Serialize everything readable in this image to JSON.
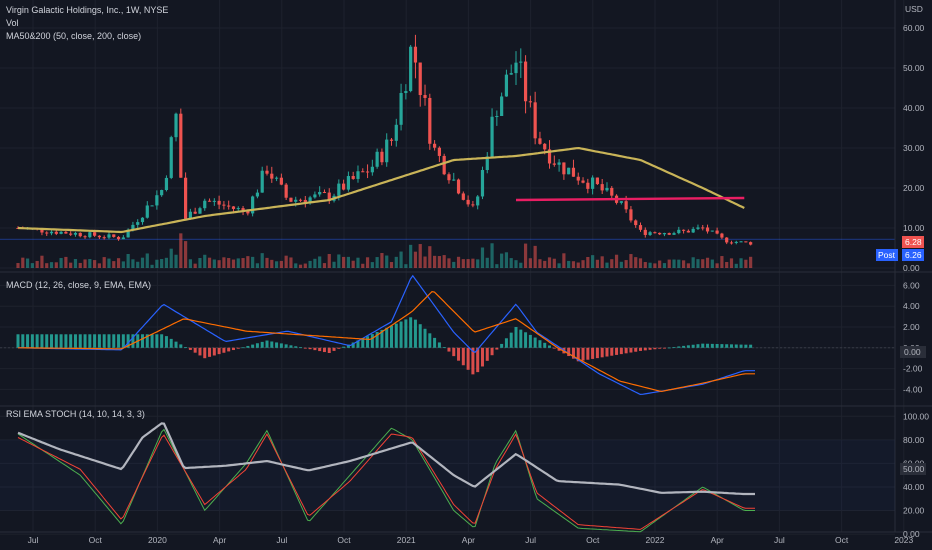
{
  "header": {
    "title": "Virgin Galactic Holdings, Inc., 1W, NYSE",
    "vol_label": "Vol",
    "ma_label": "MA50&200 (50, close, 200, close)"
  },
  "macd_panel": {
    "label": "MACD (12, 26, close, 9, EMA, EMA)"
  },
  "rsi_panel": {
    "label": "RSI EMA STOCH (14, 10, 14, 3, 3)"
  },
  "price_scale": {
    "currency": "USD",
    "ticks": [
      "60.00",
      "50.00",
      "40.00",
      "30.00",
      "20.00",
      "10.00",
      "0.00"
    ],
    "last_price": "6.28",
    "post_label": "Post",
    "post_price": "6.26"
  },
  "macd_scale": {
    "ticks": [
      "6.00",
      "4.00",
      "2.00",
      "0.00",
      "-2.00",
      "-4.00"
    ],
    "current": "0.00"
  },
  "rsi_scale": {
    "ticks": [
      "100.00",
      "80.00",
      "60.00",
      "40.00",
      "20.00",
      "0.00"
    ],
    "current": "50.00"
  },
  "time_axis": [
    "Jul",
    "Oct",
    "2020",
    "Apr",
    "Jul",
    "Oct",
    "2021",
    "Apr",
    "Jul",
    "Oct",
    "2022",
    "Apr",
    "Jul",
    "Oct",
    "2023"
  ],
  "colors": {
    "bg": "#131722",
    "up": "#26a69a",
    "down": "#ef5350",
    "ma50": "#c9b458",
    "ma200": "#e91e63",
    "macd_line": "#2962ff",
    "signal_line": "#ff6d00",
    "rsi_line": "#b2b5be",
    "stoch_k": "#4caf50",
    "stoch_d": "#f44336",
    "post_badge": "#2962ff",
    "last_badge": "#ef5350"
  },
  "chart_data": {
    "type": "candlestick",
    "interval": "1W",
    "close_price_path": [
      [
        "2019-07",
        10
      ],
      [
        "2019-10",
        8.5
      ],
      [
        "2019-12",
        7.5
      ],
      [
        "2020-02",
        20
      ],
      [
        "2020-02-20",
        38
      ],
      [
        "2020-03",
        12
      ],
      [
        "2020-04",
        17
      ],
      [
        "2020-06",
        14
      ],
      [
        "2020-07",
        25
      ],
      [
        "2020-08",
        17
      ],
      [
        "2020-10",
        18
      ],
      [
        "2020-12",
        25
      ],
      [
        "2021-01",
        32
      ],
      [
        "2021-02",
        56
      ],
      [
        "2021-03",
        30
      ],
      [
        "2021-04",
        22
      ],
      [
        "2021-05",
        14
      ],
      [
        "2021-06",
        40
      ],
      [
        "2021-07",
        52
      ],
      [
        "2021-08",
        33
      ],
      [
        "2021-09",
        26
      ],
      [
        "2021-11",
        20
      ],
      [
        "2021-12",
        16
      ],
      [
        "2022-01",
        9
      ],
      [
        "2022-03",
        9
      ],
      [
        "2022-04",
        10
      ],
      [
        "2022-05",
        7
      ],
      [
        "2022-06",
        6.28
      ]
    ],
    "ma50_path": [
      [
        "2019-07",
        10
      ],
      [
        "2019-12",
        9
      ],
      [
        "2020-04",
        13
      ],
      [
        "2020-10",
        17
      ],
      [
        "2021-01",
        22
      ],
      [
        "2021-04",
        27
      ],
      [
        "2021-07",
        28
      ],
      [
        "2021-10",
        30
      ],
      [
        "2022-01",
        27
      ],
      [
        "2022-04",
        20
      ],
      [
        "2022-06",
        15
      ]
    ],
    "ma200_path": [
      [
        "2021-07",
        17
      ],
      [
        "2022-06",
        17.5
      ]
    ],
    "macd_path": [
      [
        "2019-07",
        0
      ],
      [
        "2019-12",
        -0.2
      ],
      [
        "2020-02",
        4.2
      ],
      [
        "2020-05",
        0.6
      ],
      [
        "2020-08",
        1.6
      ],
      [
        "2020-11",
        0.2
      ],
      [
        "2021-01",
        2.5
      ],
      [
        "2021-02",
        7.0
      ],
      [
        "2021-04",
        1.5
      ],
      [
        "2021-05",
        -0.5
      ],
      [
        "2021-07",
        4.2
      ],
      [
        "2021-08",
        1.5
      ],
      [
        "2021-11",
        -2.5
      ],
      [
        "2022-01",
        -4.5
      ],
      [
        "2022-04",
        -3.5
      ],
      [
        "2022-06",
        -2.2
      ]
    ],
    "signal_path": [
      [
        "2019-07",
        0
      ],
      [
        "2019-12",
        -0.1
      ],
      [
        "2020-03",
        2.8
      ],
      [
        "2020-06",
        1.6
      ],
      [
        "2020-09",
        1.2
      ],
      [
        "2020-12",
        0.8
      ],
      [
        "2021-02",
        3.5
      ],
      [
        "2021-03",
        5.5
      ],
      [
        "2021-05",
        1.5
      ],
      [
        "2021-07",
        2.8
      ],
      [
        "2021-09",
        0
      ],
      [
        "2021-12",
        -3.2
      ],
      [
        "2022-02",
        -4.2
      ],
      [
        "2022-04",
        -3.4
      ],
      [
        "2022-06",
        -2.5
      ]
    ],
    "macd_histogram": [
      [
        "2020-02",
        1.3
      ],
      [
        "2020-04",
        -1.0
      ],
      [
        "2020-07",
        0.7
      ],
      [
        "2020-10",
        -0.5
      ],
      [
        "2021-02",
        3.0
      ],
      [
        "2021-05",
        -2.7
      ],
      [
        "2021-07",
        2.0
      ],
      [
        "2021-10",
        -1.3
      ],
      [
        "2022-01",
        -0.3
      ],
      [
        "2022-04",
        0.4
      ],
      [
        "2022-06",
        0.3
      ]
    ],
    "rsi_path": [
      [
        "2019-07",
        86
      ],
      [
        "2019-09",
        72
      ],
      [
        "2019-12",
        55
      ],
      [
        "2020-01",
        82
      ],
      [
        "2020-02",
        95
      ],
      [
        "2020-03",
        56
      ],
      [
        "2020-05",
        58
      ],
      [
        "2020-07",
        62
      ],
      [
        "2020-09",
        54
      ],
      [
        "2020-11",
        62
      ],
      [
        "2021-02",
        78
      ],
      [
        "2021-04",
        50
      ],
      [
        "2021-05",
        40
      ],
      [
        "2021-07",
        68
      ],
      [
        "2021-09",
        45
      ],
      [
        "2021-12",
        42
      ],
      [
        "2022-02",
        35
      ],
      [
        "2022-04",
        36
      ],
      [
        "2022-06",
        34
      ]
    ],
    "stoch_k_path": [
      [
        "2019-07",
        85
      ],
      [
        "2019-10",
        50
      ],
      [
        "2019-12",
        8
      ],
      [
        "2020-02",
        90
      ],
      [
        "2020-04",
        20
      ],
      [
        "2020-06",
        60
      ],
      [
        "2020-07",
        88
      ],
      [
        "2020-09",
        10
      ],
      [
        "2020-11",
        50
      ],
      [
        "2021-01",
        90
      ],
      [
        "2021-02",
        80
      ],
      [
        "2021-04",
        20
      ],
      [
        "2021-05",
        5
      ],
      [
        "2021-06",
        60
      ],
      [
        "2021-07",
        88
      ],
      [
        "2021-08",
        30
      ],
      [
        "2021-10",
        5
      ],
      [
        "2022-01",
        2
      ],
      [
        "2022-04",
        40
      ],
      [
        "2022-06",
        20
      ]
    ],
    "stoch_d_path": [
      [
        "2019-07",
        82
      ],
      [
        "2019-10",
        55
      ],
      [
        "2019-12",
        12
      ],
      [
        "2020-02",
        85
      ],
      [
        "2020-04",
        25
      ],
      [
        "2020-06",
        55
      ],
      [
        "2020-07",
        85
      ],
      [
        "2020-09",
        15
      ],
      [
        "2020-11",
        45
      ],
      [
        "2021-01",
        85
      ],
      [
        "2021-02",
        82
      ],
      [
        "2021-04",
        25
      ],
      [
        "2021-05",
        8
      ],
      [
        "2021-06",
        55
      ],
      [
        "2021-07",
        85
      ],
      [
        "2021-08",
        35
      ],
      [
        "2021-10",
        8
      ],
      [
        "2022-01",
        4
      ],
      [
        "2022-04",
        38
      ],
      [
        "2022-06",
        22
      ]
    ]
  }
}
